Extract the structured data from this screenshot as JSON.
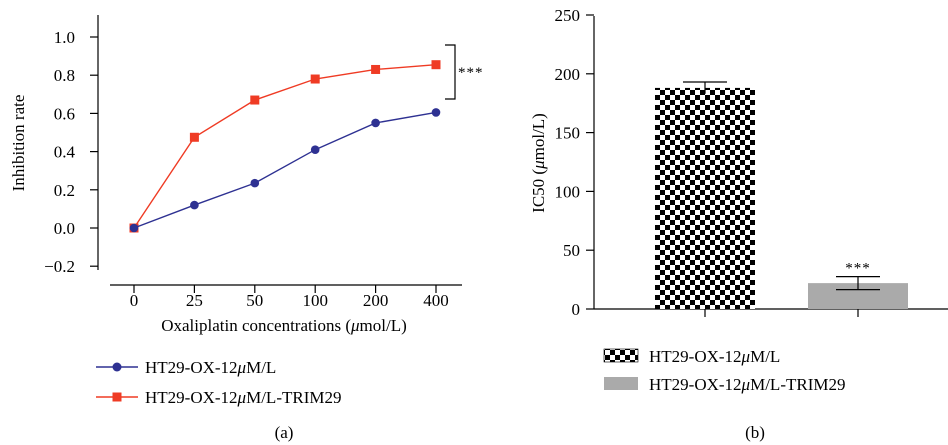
{
  "colors": {
    "series_blue": "#2e3192",
    "series_red": "#ef3b24",
    "bar_gray": "#aaaaaa",
    "axis": "#000000"
  },
  "chart_data": [
    {
      "type": "line",
      "panel_label": "(a)",
      "xlabel_prefix": "Oxaliplatin concentrations (",
      "xlabel_mu": "μ",
      "xlabel_suffix": "mol/L)",
      "ylabel": "Inhibition rate",
      "categories": [
        "0",
        "25",
        "50",
        "100",
        "200",
        "400"
      ],
      "ylim": [
        -0.2,
        1.0
      ],
      "yticks": [
        "−0.2",
        "0.0",
        "0.2",
        "0.4",
        "0.6",
        "0.8",
        "1.0"
      ],
      "ytick_values": [
        -0.2,
        0.0,
        0.2,
        0.4,
        0.6,
        0.8,
        1.0
      ],
      "significance": "***",
      "series": [
        {
          "legend_prefix": "HT29-OX-12",
          "legend_mu": "μ",
          "legend_suffix": "M/L",
          "color": "#2e3192",
          "marker": "circle",
          "values": [
            0.0,
            0.12,
            0.235,
            0.41,
            0.55,
            0.605
          ]
        },
        {
          "legend_prefix": "HT29-OX-12",
          "legend_mu": "μ",
          "legend_suffix": "M/L-TRIM29",
          "color": "#ef3b24",
          "marker": "square",
          "values": [
            0.0,
            0.475,
            0.67,
            0.78,
            0.83,
            0.855
          ]
        }
      ]
    },
    {
      "type": "bar",
      "panel_label": "(b)",
      "ylabel_prefix": "IC50 (",
      "ylabel_mu": "μ",
      "ylabel_suffix": "mol/L)",
      "ylim": [
        0,
        250
      ],
      "yticks": [
        "0",
        "50",
        "100",
        "150",
        "200",
        "250"
      ],
      "ytick_values": [
        0,
        50,
        100,
        150,
        200,
        250
      ],
      "bars": [
        {
          "legend_prefix": "HT29-OX-12",
          "legend_mu": "μ",
          "legend_suffix": "M/L",
          "pattern": "checkerboard",
          "value": 188,
          "error": 5
        },
        {
          "legend_prefix": "HT29-OX-12",
          "legend_mu": "μ",
          "legend_suffix": "M/L-TRIM29",
          "pattern": "solid-gray",
          "value": 22,
          "error": 5.5,
          "significance": "***"
        }
      ]
    }
  ]
}
